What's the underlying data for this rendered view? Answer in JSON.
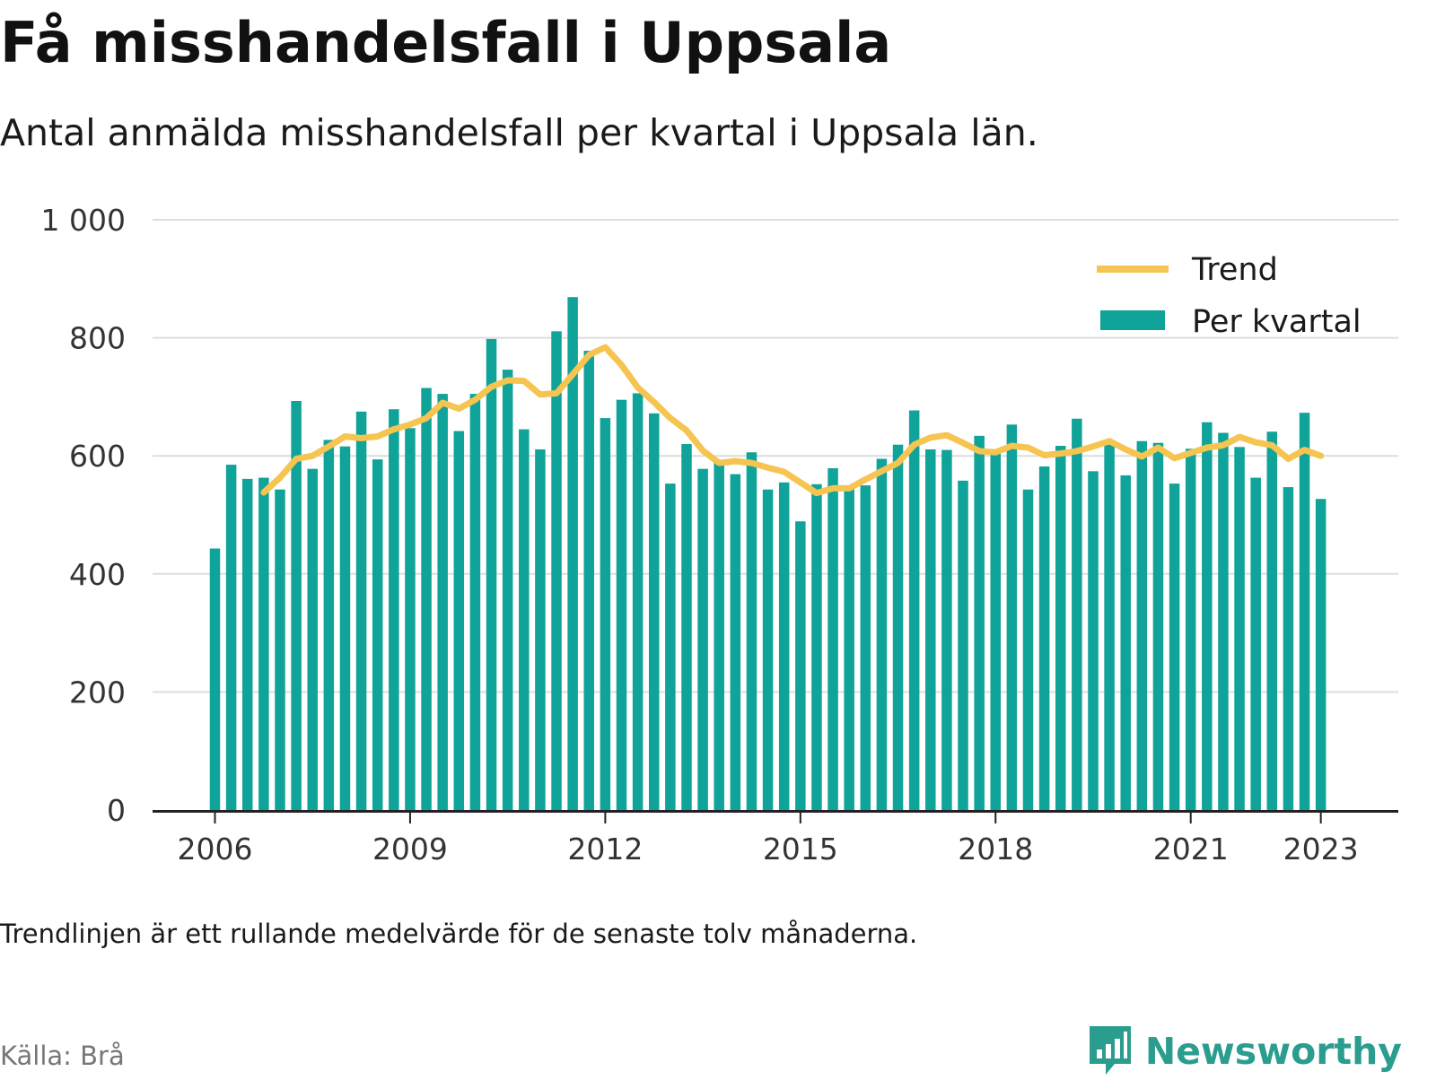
{
  "header": {
    "title": "Få misshandelsfall i Uppsala",
    "subtitle": "Antal anmälda misshandelsfall per kvartal i Uppsala län."
  },
  "footer": {
    "note": "Trendlinjen är ett rullande medelvärde för de senaste tolv månaderna.",
    "source": "Källa: Brå",
    "brand": "Newsworthy",
    "brand_icon": "bar-chart-speech-bubble-icon"
  },
  "colors": {
    "bars": "#0fa399",
    "trend": "#f5c451",
    "grid": "#dddddd",
    "axis": "#222222",
    "brand": "#2a9d8f"
  },
  "chart_data": {
    "type": "bar",
    "title": "Få misshandelsfall i Uppsala",
    "subtitle": "Antal anmälda misshandelsfall per kvartal i Uppsala län.",
    "xlabel": "",
    "ylabel": "",
    "ylim": [
      0,
      1000
    ],
    "yticks": [
      0,
      200,
      400,
      600,
      800,
      1000
    ],
    "ytick_labels": [
      "0",
      "200",
      "400",
      "600",
      "800",
      "1 000"
    ],
    "xticks": [
      2006,
      2009,
      2012,
      2015,
      2018,
      2021,
      2023
    ],
    "xtick_labels": [
      "2006",
      "2009",
      "2012",
      "2015",
      "2018",
      "2021",
      "2023"
    ],
    "grid": true,
    "legend": "top-right",
    "series": [
      {
        "name": "Per kvartal",
        "kind": "bar",
        "x": [
          "2006 Q1",
          "2006 Q2",
          "2006 Q3",
          "2006 Q4",
          "2007 Q1",
          "2007 Q2",
          "2007 Q3",
          "2007 Q4",
          "2008 Q1",
          "2008 Q2",
          "2008 Q3",
          "2008 Q4",
          "2009 Q1",
          "2009 Q2",
          "2009 Q3",
          "2009 Q4",
          "2010 Q1",
          "2010 Q2",
          "2010 Q3",
          "2010 Q4",
          "2011 Q1",
          "2011 Q2",
          "2011 Q3",
          "2011 Q4",
          "2012 Q1",
          "2012 Q2",
          "2012 Q3",
          "2012 Q4",
          "2013 Q1",
          "2013 Q2",
          "2013 Q3",
          "2013 Q4",
          "2014 Q1",
          "2014 Q2",
          "2014 Q3",
          "2014 Q4",
          "2015 Q1",
          "2015 Q2",
          "2015 Q3",
          "2015 Q4",
          "2016 Q1",
          "2016 Q2",
          "2016 Q3",
          "2016 Q4",
          "2017 Q1",
          "2017 Q2",
          "2017 Q3",
          "2017 Q4",
          "2018 Q1",
          "2018 Q2",
          "2018 Q3",
          "2018 Q4",
          "2019 Q1",
          "2019 Q2",
          "2019 Q3",
          "2019 Q4",
          "2020 Q1",
          "2020 Q2",
          "2020 Q3",
          "2020 Q4",
          "2021 Q1",
          "2021 Q2",
          "2021 Q3",
          "2021 Q4",
          "2022 Q1",
          "2022 Q2",
          "2022 Q3",
          "2022 Q4",
          "2023 Q1"
        ],
        "values": [
          443,
          585,
          561,
          563,
          543,
          693,
          578,
          627,
          616,
          675,
          594,
          679,
          647,
          715,
          705,
          642,
          705,
          798,
          746,
          645,
          611,
          811,
          869,
          778,
          664,
          695,
          706,
          672,
          553,
          620,
          578,
          592,
          569,
          606,
          543,
          555,
          489,
          552,
          579,
          543,
          550,
          595,
          619,
          677,
          611,
          610,
          558,
          634,
          607,
          653,
          543,
          582,
          617,
          663,
          574,
          619,
          567,
          625,
          622,
          553,
          612,
          657,
          639,
          615,
          563,
          641,
          547,
          673,
          527
        ]
      },
      {
        "name": "Trend",
        "kind": "line",
        "x_start": "2006 Q4",
        "values": [
          538,
          563,
          595,
          600,
          616,
          633,
          630,
          633,
          645,
          653,
          664,
          690,
          680,
          695,
          717,
          728,
          727,
          704,
          706,
          738,
          771,
          784,
          754,
          716,
          691,
          664,
          643,
          609,
          588,
          591,
          588,
          580,
          573,
          555,
          537,
          545,
          545,
          560,
          574,
          588,
          619,
          631,
          635,
          622,
          608,
          606,
          617,
          614,
          601,
          604,
          608,
          616,
          625,
          611,
          599,
          614,
          596,
          605,
          614,
          618,
          632,
          623,
          618,
          595,
          610,
          600
        ]
      }
    ]
  }
}
